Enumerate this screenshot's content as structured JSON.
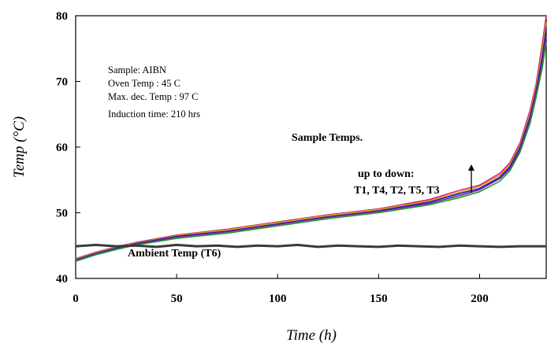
{
  "chart_data": {
    "type": "line",
    "title": "",
    "xlabel": "Time (h)",
    "ylabel": "Temp (°C)",
    "xlim": [
      0,
      233
    ],
    "ylim": [
      40,
      80
    ],
    "x_ticks": [
      0,
      50,
      100,
      150,
      200
    ],
    "y_ticks": [
      40,
      50,
      60,
      70,
      80
    ],
    "grid": false,
    "annotations": {
      "info_lines": [
        "Sample: AIBN",
        "Oven Temp : 45 C",
        "Max. dec. Temp : 97 C",
        "Induction time: 210 hrs"
      ],
      "sample_label": "Sample Temps.",
      "order_label": "up to down:",
      "order_series": "T1, T4, T2, T5, T3",
      "ambient_label": "Ambient Temp (T6)"
    },
    "series": [
      {
        "name": "",
        "color": "#e0197a",
        "x": [
          0,
          10,
          20,
          30,
          50,
          75,
          100,
          125,
          150,
          175,
          190,
          200,
          210,
          215,
          220,
          225,
          228,
          231,
          233
        ],
        "y": [
          43.0,
          44.0,
          44.8,
          45.5,
          46.6,
          47.5,
          48.6,
          49.7,
          50.6,
          52.0,
          53.4,
          54.2,
          56.0,
          57.6,
          60.6,
          65.6,
          69.6,
          75.6,
          80.0
        ]
      },
      {
        "name": "",
        "color": "#c9a400",
        "x": [
          0,
          10,
          20,
          30,
          50,
          75,
          100,
          125,
          150,
          175,
          190,
          200,
          210,
          215,
          220,
          225,
          228,
          231,
          233
        ],
        "y": [
          42.9,
          43.9,
          44.7,
          45.4,
          46.5,
          47.4,
          48.5,
          49.6,
          50.5,
          51.8,
          53.1,
          54.0,
          55.7,
          57.3,
          60.2,
          65.1,
          69.1,
          74.6,
          79.0
        ]
      },
      {
        "name": "",
        "color": "#1a1ad0",
        "x": [
          0,
          10,
          20,
          30,
          50,
          75,
          100,
          125,
          150,
          175,
          190,
          200,
          210,
          215,
          220,
          225,
          228,
          231,
          233
        ],
        "y": [
          42.8,
          43.8,
          44.6,
          45.3,
          46.4,
          47.2,
          48.3,
          49.4,
          50.3,
          51.6,
          52.9,
          53.7,
          55.4,
          57.0,
          59.9,
          64.6,
          68.6,
          73.6,
          78.0
        ]
      },
      {
        "name": "",
        "color": "#7a1a9a",
        "x": [
          0,
          10,
          20,
          30,
          50,
          75,
          100,
          125,
          150,
          175,
          190,
          200,
          210,
          215,
          220,
          225,
          228,
          231,
          233
        ],
        "y": [
          42.7,
          43.7,
          44.5,
          45.2,
          46.3,
          47.1,
          48.2,
          49.3,
          50.2,
          51.4,
          52.6,
          53.5,
          55.2,
          56.7,
          59.6,
          64.2,
          68.2,
          72.8,
          77.0
        ]
      },
      {
        "name": "",
        "color": "#1a9a2a",
        "x": [
          0,
          10,
          20,
          30,
          50,
          75,
          100,
          125,
          150,
          175,
          190,
          200,
          210,
          215,
          220,
          225,
          228,
          231,
          233
        ],
        "y": [
          42.6,
          43.6,
          44.4,
          45.1,
          46.1,
          46.9,
          48.0,
          49.1,
          50.0,
          51.2,
          52.3,
          53.2,
          54.8,
          56.4,
          59.2,
          63.6,
          67.6,
          72.0,
          76.0
        ]
      },
      {
        "name": "",
        "color": "#3a3a3a",
        "x": [
          0,
          10,
          20,
          30,
          40,
          50,
          60,
          70,
          80,
          90,
          100,
          110,
          120,
          130,
          140,
          150,
          160,
          170,
          180,
          190,
          200,
          210,
          220,
          233
        ],
        "y": [
          44.9,
          45.1,
          44.9,
          45.0,
          44.8,
          45.1,
          44.9,
          45.0,
          44.8,
          45.0,
          44.9,
          45.1,
          44.8,
          45.0,
          44.9,
          44.8,
          45.0,
          44.9,
          44.8,
          45.0,
          44.9,
          44.8,
          44.9,
          44.9
        ]
      }
    ]
  }
}
